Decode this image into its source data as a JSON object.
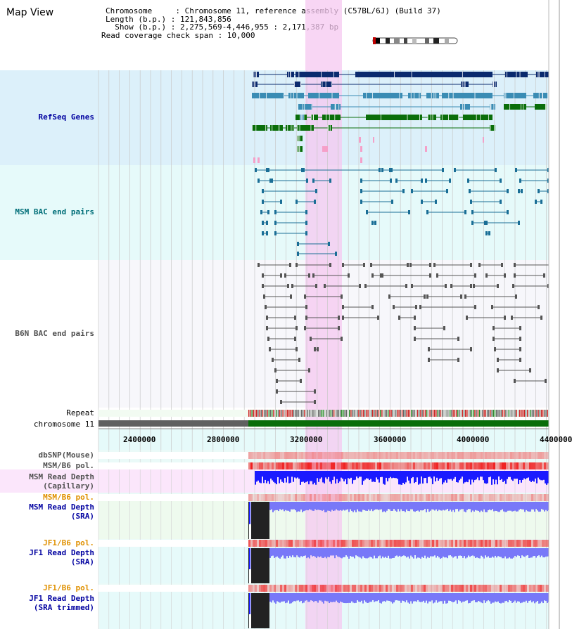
{
  "header": {
    "map_view": "Map View",
    "chromosome_line": "Chromosome     : Chromosome 11, reference assembly (C57BL/6J) (Build 37)",
    "length_line": "Length (b.p.) : 121,843,856",
    "show_line": "  Show (b.p.) : 2,275,569-4,446,955 : 2,171,387 bp",
    "coverage_line": "Read coverage check span : 10,000"
  },
  "tracks": {
    "refseq": "RefSeq Genes",
    "msm_bac": "MSM BAC end pairs",
    "b6n_bac": "B6N BAC end pairs",
    "repeat": "Repeat",
    "chromosome": "chromosome 11",
    "dbsnp": "dbSNP(Mouse)",
    "msm_b6_pol": "MSM/B6 pol.",
    "msm_depth_cap_1": "MSM Read Depth",
    "msm_depth_cap_2": "(Capillary)",
    "msm_b6_pol2": "MSM/B6 pol.",
    "msm_depth_sra_1": "MSM Read Depth",
    "msm_depth_sra_2": "(SRA)",
    "jf1_pol": "JF1/B6 pol.",
    "jf1_depth_sra_1": "JF1 Read Depth",
    "jf1_depth_sra_2": "(SRA)",
    "jf1_pol2": "JF1/B6 pol.",
    "jf1_depth_trim_1": "JF1 Read Depth",
    "jf1_depth_trim_2": "(SRA trimmed)"
  },
  "axis": {
    "ticks": [
      "2400000",
      "2800000",
      "3200000",
      "3600000",
      "4000000",
      "4400000"
    ]
  },
  "colors": {
    "refseq_bg": "#dcf0fa",
    "msm_bg": "#e6fafa",
    "b6n_bg": "#f5f5fa",
    "highlight": "#f5c8f0",
    "refseq_dark": "#0a2a6e",
    "refseq_mid": "#3a8cb4",
    "refseq_green": "#0a6e0a",
    "bac_teal": "#1a6e96",
    "bac_gray": "#555555",
    "depth_blue": "#1a1aff",
    "depth_light": "#7878f8",
    "pol_red": "#f03030",
    "label_navy": "#0000a0",
    "label_teal": "#006e78",
    "label_gray": "#505050",
    "label_orange": "#e09000"
  }
}
